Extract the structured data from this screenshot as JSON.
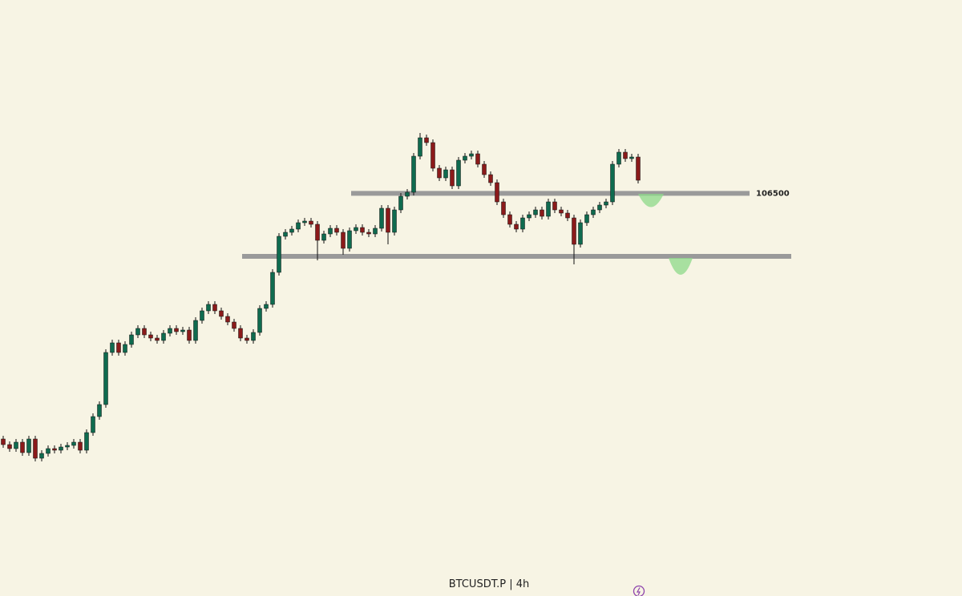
{
  "chart_data": {
    "type": "candlestick",
    "title": "BTCUSDT.P | 4h",
    "ylim": [
      68800,
      124600
    ],
    "up_color": "#0f6b4f",
    "down_color": "#8b1a1a",
    "wick_color": "#111111",
    "level_color": "#9a9a9a",
    "levels": [
      106500,
      100600
    ],
    "open": [
      83500,
      82975,
      82600,
      83200,
      82225,
      83500,
      81700,
      82150,
      82600,
      82450,
      82750,
      82900,
      83200,
      82450,
      84100,
      85600,
      86725,
      91600,
      92500,
      91600,
      92350,
      93250,
      93850,
      93250,
      92950,
      92725,
      93400,
      93850,
      93550,
      93700,
      92725,
      94600,
      95500,
      96100,
      95500,
      94975,
      94450,
      93850,
      92950,
      92725,
      93475,
      95725,
      96100,
      99100,
      102475,
      102850,
      103150,
      103750,
      103900,
      103600,
      102100,
      102700,
      103225,
      102850,
      101350,
      103000,
      103300,
      102850,
      102700,
      103225,
      105100,
      102850,
      104950,
      106225,
      106600,
      109975,
      111700,
      111250,
      108850,
      107950,
      108700,
      107200,
      109600,
      109975,
      110200,
      109225,
      108250,
      107500,
      105700,
      104500,
      103600,
      103150,
      104200,
      104500,
      104950,
      104350,
      105700,
      104950,
      104650,
      104200,
      101725,
      103750,
      104500,
      104950,
      105400,
      105700,
      109225,
      110350,
      109750,
      109900
    ],
    "high": [
      83800,
      83275,
      83500,
      83500,
      83800,
      83800,
      82450,
      82900,
      82900,
      83050,
      83200,
      83500,
      83500,
      84400,
      85900,
      87025,
      91900,
      92800,
      92800,
      92650,
      93550,
      94150,
      94150,
      93550,
      93250,
      93700,
      94150,
      94150,
      94000,
      94000,
      94900,
      95800,
      96400,
      96400,
      95800,
      95275,
      94750,
      94150,
      93250,
      93775,
      96025,
      96400,
      99400,
      102775,
      103150,
      103450,
      104050,
      104200,
      104200,
      103900,
      103000,
      103525,
      103525,
      103150,
      103300,
      103600,
      103600,
      103150,
      103525,
      105400,
      105400,
      105250,
      106525,
      106900,
      110275,
      112150,
      112000,
      111550,
      109150,
      109000,
      109000,
      109900,
      110275,
      110500,
      110500,
      109525,
      108550,
      107800,
      106000,
      104800,
      103900,
      104500,
      104800,
      105250,
      105250,
      106000,
      106000,
      105250,
      104950,
      104500,
      104050,
      104800,
      105250,
      105700,
      106000,
      109525,
      110650,
      110650,
      110200,
      110200
    ],
    "low": [
      82675,
      82300,
      82300,
      81925,
      81925,
      81400,
      81400,
      81850,
      82150,
      82150,
      82450,
      82600,
      82150,
      82150,
      83800,
      85300,
      86425,
      91300,
      91300,
      91300,
      92050,
      92950,
      92950,
      92650,
      92425,
      92425,
      93100,
      93250,
      93250,
      92425,
      92425,
      94300,
      95200,
      95200,
      94675,
      94150,
      93550,
      92650,
      92425,
      92425,
      93175,
      95425,
      95800,
      98800,
      102175,
      102550,
      102850,
      103450,
      103300,
      100225,
      101800,
      102400,
      102550,
      100750,
      101050,
      102700,
      102550,
      102400,
      102400,
      102925,
      101725,
      102550,
      104650,
      105925,
      106300,
      109675,
      110950,
      108550,
      107650,
      107650,
      106900,
      106900,
      109300,
      109675,
      108925,
      107950,
      107200,
      105400,
      104200,
      103300,
      102850,
      102850,
      103900,
      104200,
      104050,
      104050,
      104650,
      104350,
      103900,
      99850,
      101425,
      103450,
      104200,
      104650,
      105100,
      105400,
      108925,
      109450,
      109450,
      107425
    ],
    "close": [
      82975,
      82600,
      83200,
      82225,
      83500,
      81700,
      82150,
      82600,
      82450,
      82750,
      82900,
      83200,
      82450,
      84100,
      85600,
      86725,
      91600,
      92500,
      91600,
      92350,
      93250,
      93850,
      93250,
      92950,
      92725,
      93400,
      93850,
      93550,
      93700,
      92725,
      94600,
      95500,
      96100,
      95500,
      94975,
      94450,
      93850,
      92950,
      92725,
      93475,
      95725,
      96100,
      99100,
      102475,
      102850,
      103150,
      103750,
      103900,
      103600,
      102100,
      102700,
      103225,
      102850,
      101350,
      103000,
      103300,
      102850,
      102700,
      103225,
      105100,
      102850,
      104950,
      106225,
      106600,
      109975,
      111700,
      111250,
      108850,
      107950,
      108700,
      107200,
      109600,
      109975,
      110200,
      109225,
      108250,
      107500,
      105700,
      104500,
      103600,
      103150,
      104200,
      104500,
      104950,
      104350,
      105700,
      104950,
      104650,
      104200,
      101725,
      103750,
      104500,
      104950,
      105400,
      105700,
      109225,
      110350,
      109750,
      109900,
      107725
    ]
  }
}
